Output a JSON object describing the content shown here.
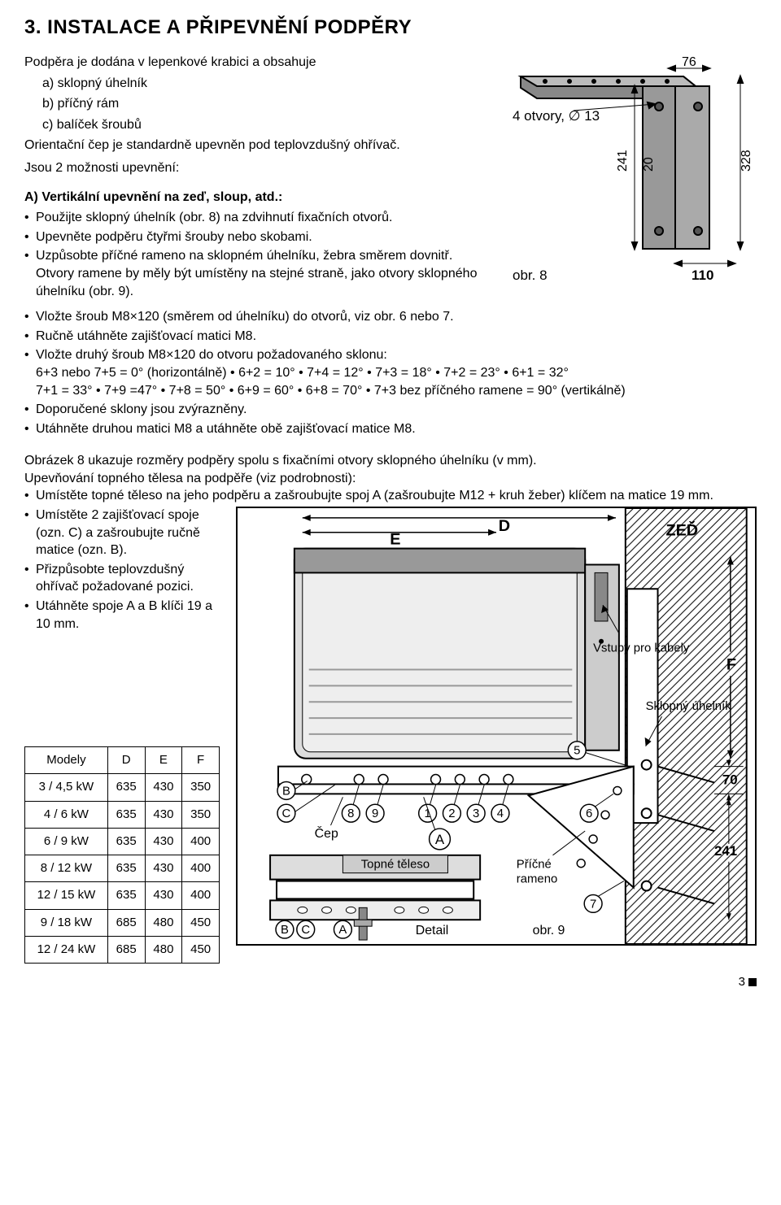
{
  "title": "3. INSTALACE A PŘIPEVNĚNÍ PODPĚRY",
  "intro": {
    "line1": "Podpěra je dodána v lepenkové krabici a obsahuje",
    "a": "a) sklopný úhelník",
    "b": "b) příčný rám",
    "c": "c) balíček šroubů",
    "orient": "Orientační čep je standardně upevněn pod teplovzdušný ohřívač.",
    "options": "Jsou 2 možnosti upevnění:"
  },
  "subheadA": "A) Vertikální upevnění na zeď, sloup, atd.:",
  "bulletsA": [
    "Použijte sklopný úhelník (obr. 8) na zdvihnutí fixačních otvorů.",
    "Upevněte podpěru čtyřmi šrouby nebo skobami.",
    "Uzpůsobte příčné rameno na sklopném úhelníku, žebra směrem dovnitř. Otvory ramene by měly být umístěny na stejné straně, jako otvory sklopného úhelníku (obr. 9).",
    "Vložte šroub M8×120 (směrem od úhelníku) do otvorů, viz obr. 6 nebo 7.",
    "Ručně utáhněte zajišťovací matici M8.",
    "Vložte druhý šroub M8×120 do otvoru požadovaného sklonu:",
    "Doporučené sklony jsou zvýrazněny.",
    "Utáhněte druhou matici M8 a utáhněte obě zajišťovací matice M8."
  ],
  "angles1": "6+3 nebo 7+5 = 0° (horizontálně) • 6+2 = 10° • 7+4 = 12° • 7+3 = 18° • 7+2 = 23° • 6+1 = 32°",
  "angles2": "7+1 = 33° • 7+9 =47° • 7+8 = 50° • 6+9 = 60° • 6+8 = 70° • 7+3 bez příčného ramene = 90° (vertikálně)",
  "para2a": "Obrázek 8 ukazuje rozměry podpěry spolu s fixačními otvory sklopného úhelníku (v mm).",
  "para2b": "Upevňování topného tělesa na podpěře (viz podrobnosti):",
  "bullets2": [
    "Umístěte topné těleso na jeho podpěru a zašroubujte spoj A (zašroubujte M12 + kruh žeber) klíčem na matice 19 mm.",
    "Umístěte 2 zajišťovací spoje (ozn. C) a zašroubujte ručně matice (ozn. B).",
    "Přizpůsobte teplovzdušný ohřívač požadované pozici.",
    "Utáhněte spoje A a B klíči 19 a 10 mm."
  ],
  "fig8": {
    "label_holes": "4 otvory, ∅ 13",
    "caption": "obr. 8",
    "d241": "241",
    "d20": "20",
    "d76": "76",
    "d328": "328",
    "d110": "110"
  },
  "table": {
    "headers": [
      "Modely",
      "D",
      "E",
      "F"
    ],
    "rows": [
      [
        "3 / 4,5 kW",
        "635",
        "430",
        "350"
      ],
      [
        "4 / 6 kW",
        "635",
        "430",
        "350"
      ],
      [
        "6 / 9 kW",
        "635",
        "430",
        "400"
      ],
      [
        "8 / 12 kW",
        "635",
        "430",
        "400"
      ],
      [
        "12 / 15 kW",
        "635",
        "430",
        "400"
      ],
      [
        "9 / 18 kW",
        "685",
        "480",
        "450"
      ],
      [
        "12 / 24 kW",
        "685",
        "480",
        "450"
      ]
    ]
  },
  "fig9": {
    "E": "E",
    "D": "D",
    "ZED": "ZEĎ",
    "F": "F",
    "vstupy": "Vstupy pro kabely",
    "sklopny": "Sklopný úhelník",
    "cep": "Čep",
    "topne": "Topné těleso",
    "pricne": "Příčné rameno",
    "detail": "Detail",
    "caption": "obr. 9",
    "d70": "70",
    "d241": "241",
    "n1": "1",
    "n2": "2",
    "n3": "3",
    "n4": "4",
    "n5": "5",
    "n6": "6",
    "n7": "7",
    "n8": "8",
    "n9": "9",
    "A": "A",
    "B": "B",
    "C": "C"
  },
  "pageNum": "3"
}
